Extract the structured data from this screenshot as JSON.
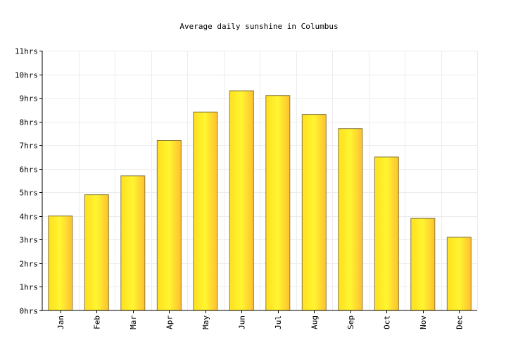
{
  "chart_data": {
    "type": "bar",
    "title": "Average daily sunshine in Columbus",
    "categories": [
      "Jan",
      "Feb",
      "Mar",
      "Apr",
      "May",
      "Jun",
      "Jul",
      "Aug",
      "Sep",
      "Oct",
      "Nov",
      "Dec"
    ],
    "values": [
      4.0,
      4.9,
      5.7,
      7.2,
      8.4,
      9.3,
      9.1,
      8.3,
      7.7,
      6.5,
      3.9,
      3.1
    ],
    "ylim": [
      0,
      11
    ],
    "yticks": [
      "0hrs",
      "1hrs",
      "2hrs",
      "3hrs",
      "4hrs",
      "5hrs",
      "6hrs",
      "7hrs",
      "8hrs",
      "9hrs",
      "10hrs",
      "11hrs"
    ],
    "grid": true,
    "bar_color": "#ffe020"
  }
}
